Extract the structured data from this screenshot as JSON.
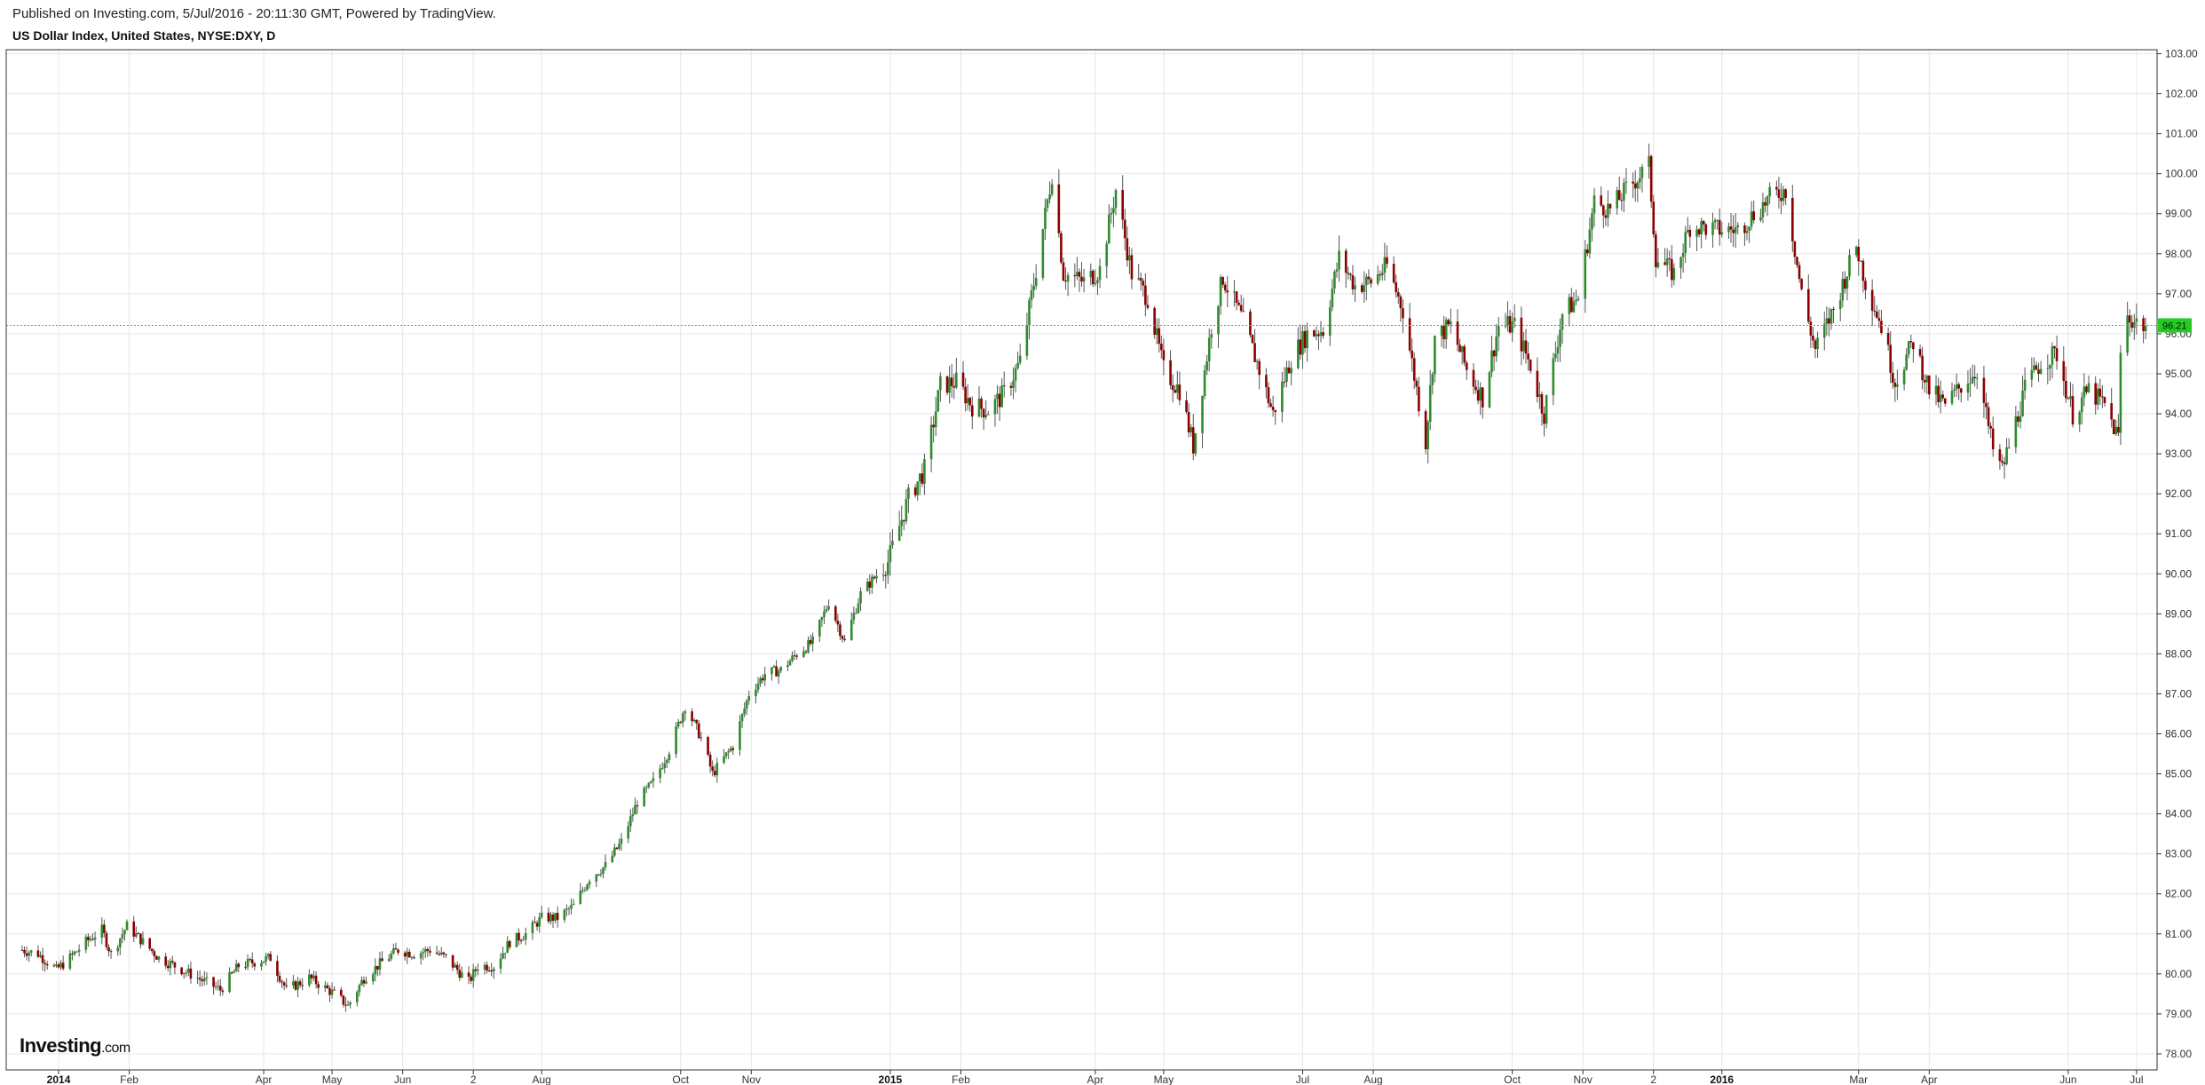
{
  "header": {
    "published": "Published on Investing.com, 5/Jul/2016 - 20:11:30 GMT, Powered by TradingView.",
    "symbol": "US Dollar Index, United States, NYSE:DXY, D"
  },
  "logo": {
    "brand": "Investing",
    "tld": ".com"
  },
  "colors": {
    "up": "#2e8b2e",
    "down": "#8b0000",
    "wick": "#555555",
    "grid": "#e6e6e6",
    "last_price_line": "#22cc22",
    "last_price_tag": "#22cc22"
  },
  "chart_data": {
    "type": "candlestick",
    "title": "US Dollar Index, United States, NYSE:DXY, D",
    "interval": "D",
    "ylim": [
      77.6,
      103.1
    ],
    "y_ticks": [
      "78.00",
      "79.00",
      "80.00",
      "81.00",
      "82.00",
      "83.00",
      "84.00",
      "85.00",
      "86.00",
      "87.00",
      "88.00",
      "89.00",
      "90.00",
      "91.00",
      "92.00",
      "93.00",
      "94.00",
      "95.00",
      "96.00",
      "97.00",
      "98.00",
      "99.00",
      "100.00",
      "101.00",
      "102.00",
      "103.00"
    ],
    "x_ticks": [
      {
        "label": "2014",
        "bold": true,
        "date": "2014-01-01"
      },
      {
        "label": "Feb",
        "bold": false,
        "date": "2014-02-01"
      },
      {
        "label": "Apr",
        "bold": false,
        "date": "2014-04-01"
      },
      {
        "label": "May",
        "bold": false,
        "date": "2014-05-01"
      },
      {
        "label": "Jun",
        "bold": false,
        "date": "2014-06-01"
      },
      {
        "label": "2",
        "bold": false,
        "date": "2014-07-02"
      },
      {
        "label": "Aug",
        "bold": false,
        "date": "2014-08-01"
      },
      {
        "label": "Oct",
        "bold": false,
        "date": "2014-10-01"
      },
      {
        "label": "Nov",
        "bold": false,
        "date": "2014-11-01"
      },
      {
        "label": "2015",
        "bold": true,
        "date": "2015-01-01"
      },
      {
        "label": "Feb",
        "bold": false,
        "date": "2015-02-01"
      },
      {
        "label": "Apr",
        "bold": false,
        "date": "2015-04-01"
      },
      {
        "label": "May",
        "bold": false,
        "date": "2015-05-01"
      },
      {
        "label": "Jul",
        "bold": false,
        "date": "2015-07-01"
      },
      {
        "label": "Aug",
        "bold": false,
        "date": "2015-08-01"
      },
      {
        "label": "Oct",
        "bold": false,
        "date": "2015-10-01"
      },
      {
        "label": "Nov",
        "bold": false,
        "date": "2015-11-01"
      },
      {
        "label": "2",
        "bold": false,
        "date": "2015-12-02"
      },
      {
        "label": "2016",
        "bold": true,
        "date": "2016-01-01"
      },
      {
        "label": "Mar",
        "bold": false,
        "date": "2016-03-01"
      },
      {
        "label": "Apr",
        "bold": false,
        "date": "2016-04-01"
      },
      {
        "label": "Jun",
        "bold": false,
        "date": "2016-06-01"
      },
      {
        "label": "Jul",
        "bold": false,
        "date": "2016-07-01"
      }
    ],
    "last_price": 96.21,
    "last_price_label": "96.21",
    "close_anchors": [
      [
        "2013-12-16",
        80.6
      ],
      [
        "2013-12-23",
        80.5
      ],
      [
        "2013-12-31",
        80.1
      ],
      [
        "2014-01-06",
        80.4
      ],
      [
        "2014-01-13",
        80.8
      ],
      [
        "2014-01-20",
        81.1
      ],
      [
        "2014-01-24",
        80.5
      ],
      [
        "2014-01-31",
        81.2
      ],
      [
        "2014-02-07",
        80.8
      ],
      [
        "2014-02-14",
        80.4
      ],
      [
        "2014-02-21",
        80.2
      ],
      [
        "2014-03-03",
        79.9
      ],
      [
        "2014-03-13",
        79.6
      ],
      [
        "2014-03-21",
        80.2
      ],
      [
        "2014-03-28",
        80.3
      ],
      [
        "2014-04-04",
        80.4
      ],
      [
        "2014-04-11",
        79.6
      ],
      [
        "2014-04-21",
        79.9
      ],
      [
        "2014-05-02",
        79.5
      ],
      [
        "2014-05-08",
        79.2
      ],
      [
        "2014-05-15",
        79.9
      ],
      [
        "2014-05-23",
        80.3
      ],
      [
        "2014-05-30",
        80.6
      ],
      [
        "2014-06-06",
        80.5
      ],
      [
        "2014-06-13",
        80.6
      ],
      [
        "2014-06-20",
        80.4
      ],
      [
        "2014-06-30",
        79.8
      ],
      [
        "2014-07-04",
        80.2
      ],
      [
        "2014-07-11",
        80.2
      ],
      [
        "2014-07-18",
        80.8
      ],
      [
        "2014-07-25",
        81.0
      ],
      [
        "2014-08-01",
        81.4
      ],
      [
        "2014-08-08",
        81.4
      ],
      [
        "2014-08-15",
        81.7
      ],
      [
        "2014-08-22",
        82.4
      ],
      [
        "2014-08-29",
        82.7
      ],
      [
        "2014-09-05",
        83.3
      ],
      [
        "2014-09-12",
        84.3
      ],
      [
        "2014-09-19",
        84.8
      ],
      [
        "2014-09-26",
        85.6
      ],
      [
        "2014-10-03",
        86.7
      ],
      [
        "2014-10-10",
        85.9
      ],
      [
        "2014-10-15",
        85.0
      ],
      [
        "2014-10-24",
        85.7
      ],
      [
        "2014-10-31",
        87.0
      ],
      [
        "2014-11-07",
        87.5
      ],
      [
        "2014-11-14",
        87.6
      ],
      [
        "2014-11-21",
        88.0
      ],
      [
        "2014-11-28",
        88.3
      ],
      [
        "2014-12-05",
        89.3
      ],
      [
        "2014-12-12",
        88.3
      ],
      [
        "2014-12-19",
        89.5
      ],
      [
        "2014-12-31",
        90.3
      ],
      [
        "2015-01-09",
        91.9
      ],
      [
        "2015-01-16",
        92.6
      ],
      [
        "2015-01-23",
        94.7
      ],
      [
        "2015-01-30",
        94.8
      ],
      [
        "2015-02-06",
        94.2
      ],
      [
        "2015-02-13",
        94.1
      ],
      [
        "2015-02-20",
        94.5
      ],
      [
        "2015-02-27",
        95.3
      ],
      [
        "2015-03-06",
        97.6
      ],
      [
        "2015-03-13",
        100.0
      ],
      [
        "2015-03-18",
        97.5
      ],
      [
        "2015-03-27",
        97.3
      ],
      [
        "2015-04-03",
        97.6
      ],
      [
        "2015-04-10",
        99.6
      ],
      [
        "2015-04-17",
        97.5
      ],
      [
        "2015-04-24",
        96.9
      ],
      [
        "2015-05-01",
        95.1
      ],
      [
        "2015-05-08",
        94.6
      ],
      [
        "2015-05-14",
        93.2
      ],
      [
        "2015-05-22",
        96.2
      ],
      [
        "2015-05-27",
        97.4
      ],
      [
        "2015-06-05",
        96.3
      ],
      [
        "2015-06-12",
        95.1
      ],
      [
        "2015-06-18",
        94.0
      ],
      [
        "2015-06-26",
        95.4
      ],
      [
        "2015-07-03",
        96.0
      ],
      [
        "2015-07-10",
        96.1
      ],
      [
        "2015-07-17",
        97.9
      ],
      [
        "2015-07-24",
        97.2
      ],
      [
        "2015-07-31",
        97.3
      ],
      [
        "2015-08-07",
        97.7
      ],
      [
        "2015-08-14",
        96.6
      ],
      [
        "2015-08-24",
        93.3
      ],
      [
        "2015-08-28",
        95.9
      ],
      [
        "2015-09-04",
        96.2
      ],
      [
        "2015-09-11",
        95.1
      ],
      [
        "2015-09-18",
        94.4
      ],
      [
        "2015-09-25",
        96.2
      ],
      [
        "2015-10-02",
        96.2
      ],
      [
        "2015-10-09",
        95.2
      ],
      [
        "2015-10-15",
        94.0
      ],
      [
        "2015-10-23",
        96.5
      ],
      [
        "2015-10-30",
        96.9
      ],
      [
        "2015-11-06",
        99.3
      ],
      [
        "2015-11-13",
        99.1
      ],
      [
        "2015-11-20",
        99.6
      ],
      [
        "2015-11-30",
        100.2
      ],
      [
        "2015-12-03",
        97.9
      ],
      [
        "2015-12-11",
        97.5
      ],
      [
        "2015-12-18",
        98.7
      ],
      [
        "2015-12-31",
        98.6
      ],
      [
        "2016-01-08",
        98.6
      ],
      [
        "2016-01-15",
        99.0
      ],
      [
        "2016-01-22",
        99.4
      ],
      [
        "2016-01-29",
        99.6
      ],
      [
        "2016-02-05",
        97.0
      ],
      [
        "2016-02-11",
        95.6
      ],
      [
        "2016-02-19",
        96.6
      ],
      [
        "2016-02-29",
        98.2
      ],
      [
        "2016-03-04",
        97.3
      ],
      [
        "2016-03-11",
        96.2
      ],
      [
        "2016-03-17",
        94.8
      ],
      [
        "2016-03-25",
        95.8
      ],
      [
        "2016-04-01",
        94.6
      ],
      [
        "2016-04-08",
        94.2
      ],
      [
        "2016-04-15",
        94.7
      ],
      [
        "2016-04-22",
        95.1
      ],
      [
        "2016-04-29",
        93.1
      ],
      [
        "2016-05-03",
        92.6
      ],
      [
        "2016-05-13",
        94.6
      ],
      [
        "2016-05-20",
        95.3
      ],
      [
        "2016-05-27",
        95.5
      ],
      [
        "2016-06-03",
        94.0
      ],
      [
        "2016-06-10",
        94.6
      ],
      [
        "2016-06-17",
        94.2
      ],
      [
        "2016-06-23",
        93.4
      ],
      [
        "2016-06-24",
        95.5
      ],
      [
        "2016-06-27",
        96.4
      ],
      [
        "2016-07-05",
        96.2
      ]
    ]
  }
}
